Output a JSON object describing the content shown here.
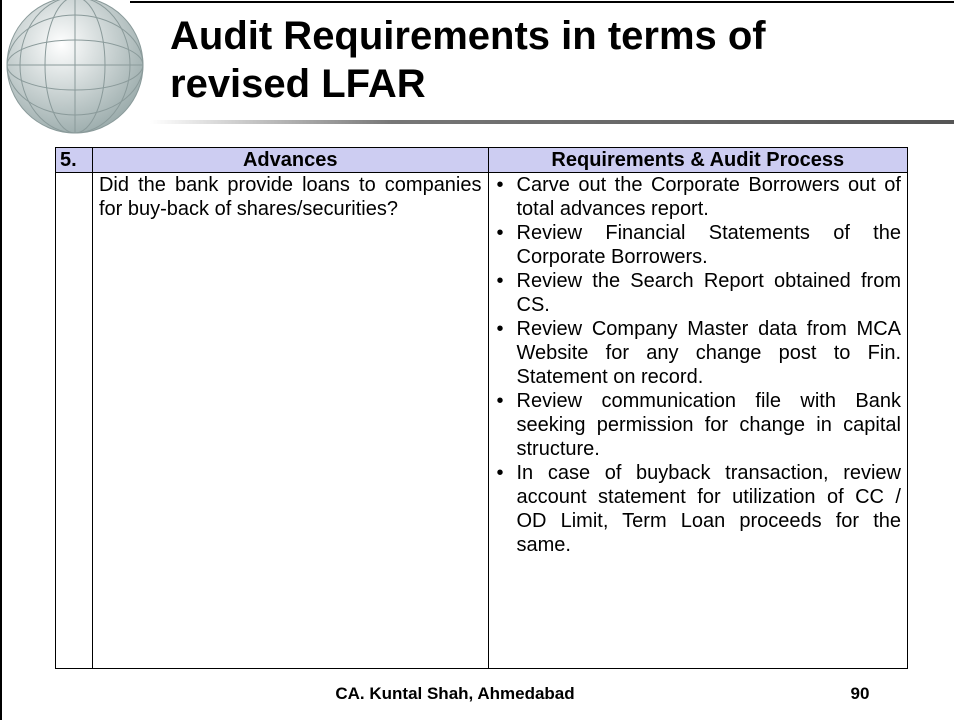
{
  "header": {
    "title": "Audit Requirements in terms of revised LFAR"
  },
  "table": {
    "columns": [
      "5.",
      "Advances",
      "Requirements & Audit Process"
    ],
    "rows": [
      {
        "question": "Did the bank provide loans to companies for buy-back of shares/securities?",
        "points": [
          "Carve out the Corporate Borrowers out of total advances report.",
          "Review Financial Statements of the Corporate Borrowers.",
          "Review the Search Report obtained from CS.",
          "Review Company Master data from MCA Website for any change post to Fin. Statement on record.",
          "Review communication file with Bank seeking permission for change in capital structure.",
          "In case of buyback transaction, review account statement for utilization of CC / OD Limit, Term Loan proceeds for the same."
        ]
      }
    ]
  },
  "footer": {
    "author": "CA. Kuntal Shah, Ahmedabad",
    "page": "90"
  }
}
